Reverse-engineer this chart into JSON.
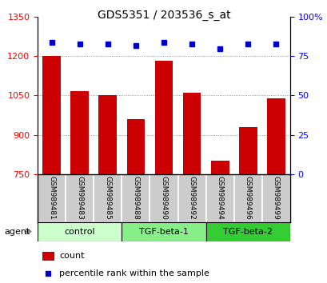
{
  "title": "GDS5351 / 203536_s_at",
  "samples": [
    "GSM989481",
    "GSM989483",
    "GSM989485",
    "GSM989488",
    "GSM989490",
    "GSM989492",
    "GSM989494",
    "GSM989496",
    "GSM989499"
  ],
  "counts": [
    1200,
    1068,
    1050,
    960,
    1183,
    1060,
    800,
    930,
    1040
  ],
  "percentile_ranks": [
    84,
    83,
    83,
    82,
    84,
    83,
    80,
    83,
    83
  ],
  "groups": [
    {
      "label": "control",
      "indices": [
        0,
        1,
        2
      ],
      "color": "#ccffcc"
    },
    {
      "label": "TGF-beta-1",
      "indices": [
        3,
        4,
        5
      ],
      "color": "#88ee88"
    },
    {
      "label": "TGF-beta-2",
      "indices": [
        6,
        7,
        8
      ],
      "color": "#33cc33"
    }
  ],
  "bar_color": "#cc0000",
  "dot_color": "#0000cc",
  "left_ylim": [
    750,
    1350
  ],
  "left_yticks": [
    750,
    900,
    1050,
    1200,
    1350
  ],
  "right_ylim": [
    0,
    100
  ],
  "right_yticks": [
    0,
    25,
    50,
    75,
    100
  ],
  "right_yticklabels": [
    "0",
    "25",
    "50",
    "75",
    "100%"
  ],
  "grid_values": [
    900,
    1050,
    1200
  ],
  "bar_bottom": 750,
  "agent_label": "agent",
  "legend_count": "count",
  "legend_percentile": "percentile rank within the sample"
}
